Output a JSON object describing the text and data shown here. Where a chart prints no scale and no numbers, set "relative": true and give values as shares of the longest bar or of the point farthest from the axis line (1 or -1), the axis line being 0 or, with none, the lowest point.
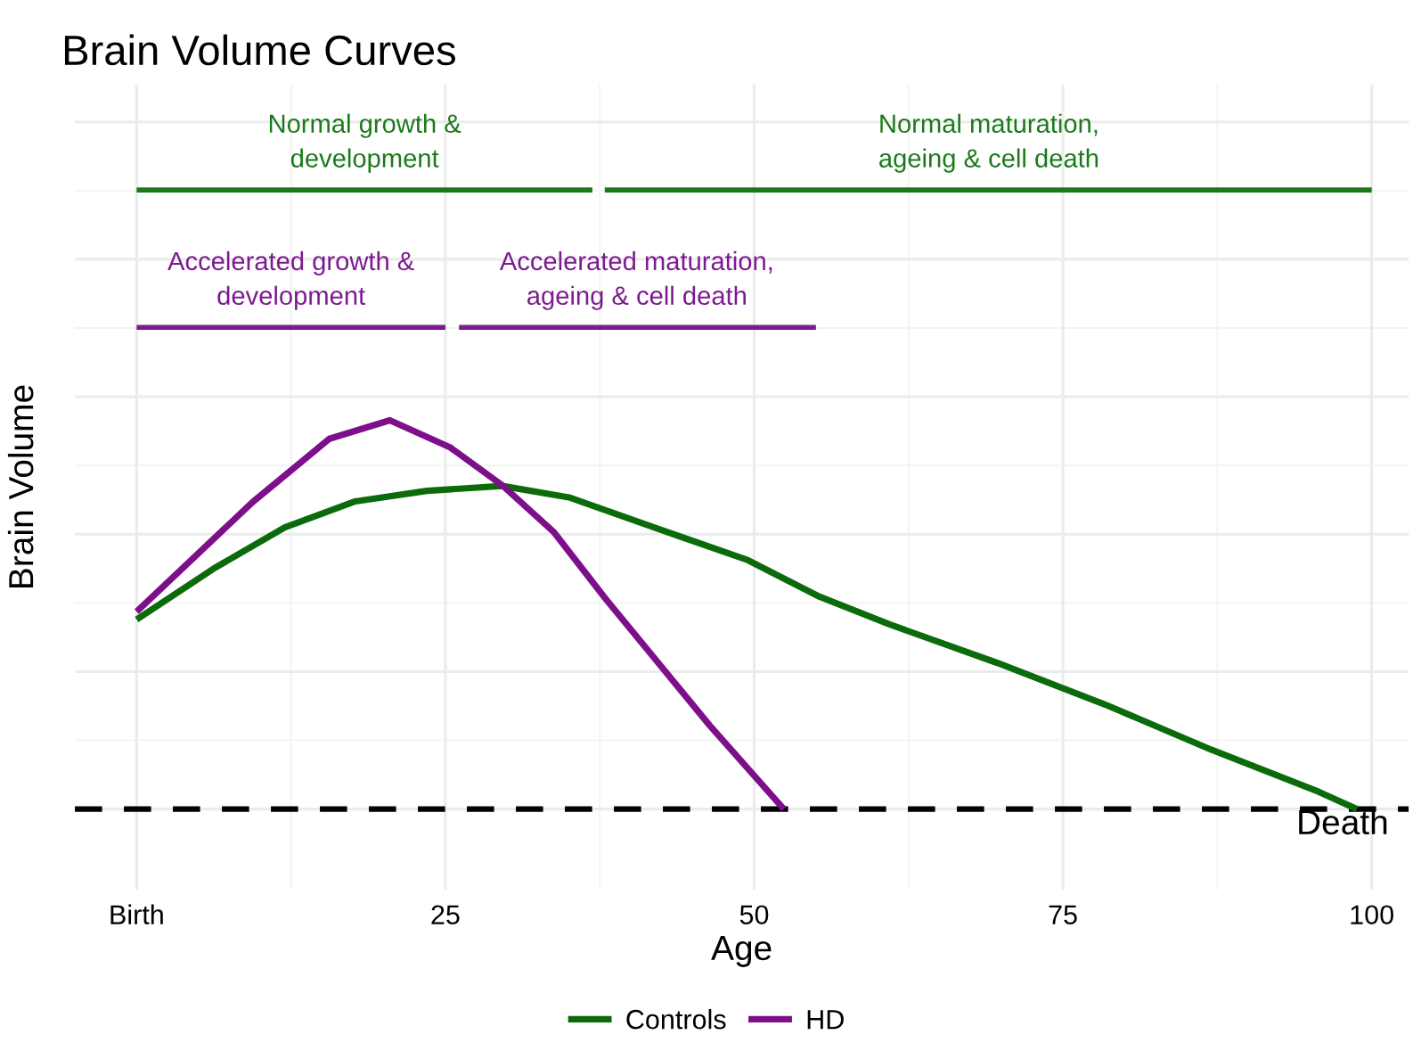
{
  "chart_data": {
    "type": "line",
    "title": "Brain Volume Curves",
    "xlabel": "Age",
    "ylabel": "Brain Volume",
    "relative": true,
    "grid": true,
    "legend": "bottom",
    "xlim": [
      -5,
      103
    ],
    "xticks": [
      {
        "value": 0,
        "label": "Birth"
      },
      25,
      50,
      75,
      100
    ],
    "series": [
      {
        "name": "Controls",
        "color": "#0b6b0b",
        "x": [
          0,
          6.2,
          12,
          17.7,
          23.5,
          29.6,
          35.1,
          42.3,
          49.5,
          55.3,
          61,
          69.7,
          78.4,
          87,
          95.7,
          98.8
        ],
        "values": [
          0.306,
          0.388,
          0.455,
          0.497,
          0.514,
          0.522,
          0.503,
          0.452,
          0.402,
          0.343,
          0.298,
          0.236,
          0.169,
          0.096,
          0.028,
          0
        ]
      },
      {
        "name": "HD",
        "color": "#7d0f8b",
        "x": [
          0,
          9.4,
          15.6,
          20.5,
          25.4,
          29.6,
          33.8,
          38,
          42.2,
          46.4,
          52.4
        ],
        "values": [
          0.319,
          0.496,
          0.598,
          0.628,
          0.584,
          0.523,
          0.447,
          0.339,
          0.237,
          0.135,
          0
        ]
      },
      {
        "color": "#1a7a1a",
        "x": [
          0,
          36.9
        ],
        "values": [
          1,
          1
        ]
      },
      {
        "color": "#1a7a1a",
        "x": [
          37.9,
          100
        ],
        "values": [
          1,
          1
        ]
      },
      {
        "color": "#7d1a92",
        "x": [
          0,
          25
        ],
        "values": [
          0.778,
          0.778
        ]
      },
      {
        "color": "#7d1a92",
        "x": [
          26.1,
          55
        ],
        "values": [
          0.778,
          0.778
        ]
      }
    ],
    "annotations": [
      {
        "text": "Normal growth &\ndevelopment",
        "x": 18.45,
        "y": 1
      },
      {
        "text": "Normal maturation,\nageing & cell death",
        "x": 69,
        "y": 1
      },
      {
        "text": "Accelerated growth &\ndevelopment",
        "x": 12.5,
        "y": 0.778
      },
      {
        "text": "Accelerated maturation,\nageing & cell death",
        "x": 40.5,
        "y": 0.778
      }
    ],
    "ref_lines": [
      {
        "axis": "y",
        "value": 0,
        "label": "Death",
        "color": "#000000",
        "line_style": "dashed"
      }
    ]
  }
}
